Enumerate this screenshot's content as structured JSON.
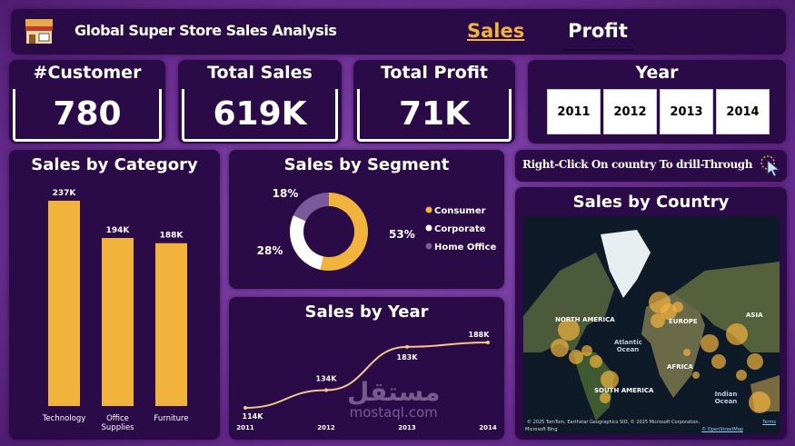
{
  "header": {
    "title": "Global Super Store Sales Analysis",
    "logo_icon": "store-icon",
    "tabs": [
      {
        "label": "Sales",
        "active": true
      },
      {
        "label": "Profit",
        "active": false
      }
    ]
  },
  "kpis": [
    {
      "label": "#Customer",
      "value": "780"
    },
    {
      "label": "Total Sales",
      "value": "619K"
    },
    {
      "label": "Total Profit",
      "value": "71K"
    }
  ],
  "year_filter": {
    "label": "Year",
    "options": [
      "2011",
      "2012",
      "2013",
      "2014"
    ]
  },
  "drill_hint": {
    "text": "Right-Click On country To drill-Through",
    "icon": "cursor-click-icon"
  },
  "colors": {
    "accent": "#f2b33d",
    "panel": "#2a0b47",
    "background": "#6c2f94",
    "home_office": "#7a5a9a"
  },
  "chart_data": [
    {
      "type": "bar",
      "title": "Sales by Category",
      "categories": [
        "Technology",
        "Office Supplies",
        "Furniture"
      ],
      "values": [
        237,
        194,
        188
      ],
      "labels": [
        "237K",
        "194K",
        "188K"
      ],
      "unit": "K"
    },
    {
      "type": "pie",
      "title": "Sales by Segment",
      "categories": [
        "Consumer",
        "Corporate",
        "Home Office"
      ],
      "values": [
        53,
        28,
        18
      ],
      "labels": [
        "53%",
        "28%",
        "18%"
      ],
      "legend": "right"
    },
    {
      "type": "line",
      "title": "Sales by Year",
      "x": [
        "2011",
        "2012",
        "2013",
        "2014"
      ],
      "values": [
        114,
        134,
        183,
        188
      ],
      "labels": [
        "114K",
        "134K",
        "183K",
        "188K"
      ],
      "unit": "K"
    }
  ],
  "map": {
    "title": "Sales by Country",
    "labels": [
      "NORTH AMERICA",
      "EUROPE",
      "ASIA",
      "Atlantic Ocean",
      "AFRICA",
      "SOUTH AMERICA",
      "Indian Ocean"
    ],
    "attribution": "© 2025 TomTom, Earthstar Geographics SIO, © 2025 Microsoft Corporation,",
    "terms": "Terms",
    "osm": "© OpenStreetMap",
    "brand": "Microsoft Bing"
  },
  "watermark": {
    "arabic": "مستقل",
    "latin": "mostaql.com"
  }
}
